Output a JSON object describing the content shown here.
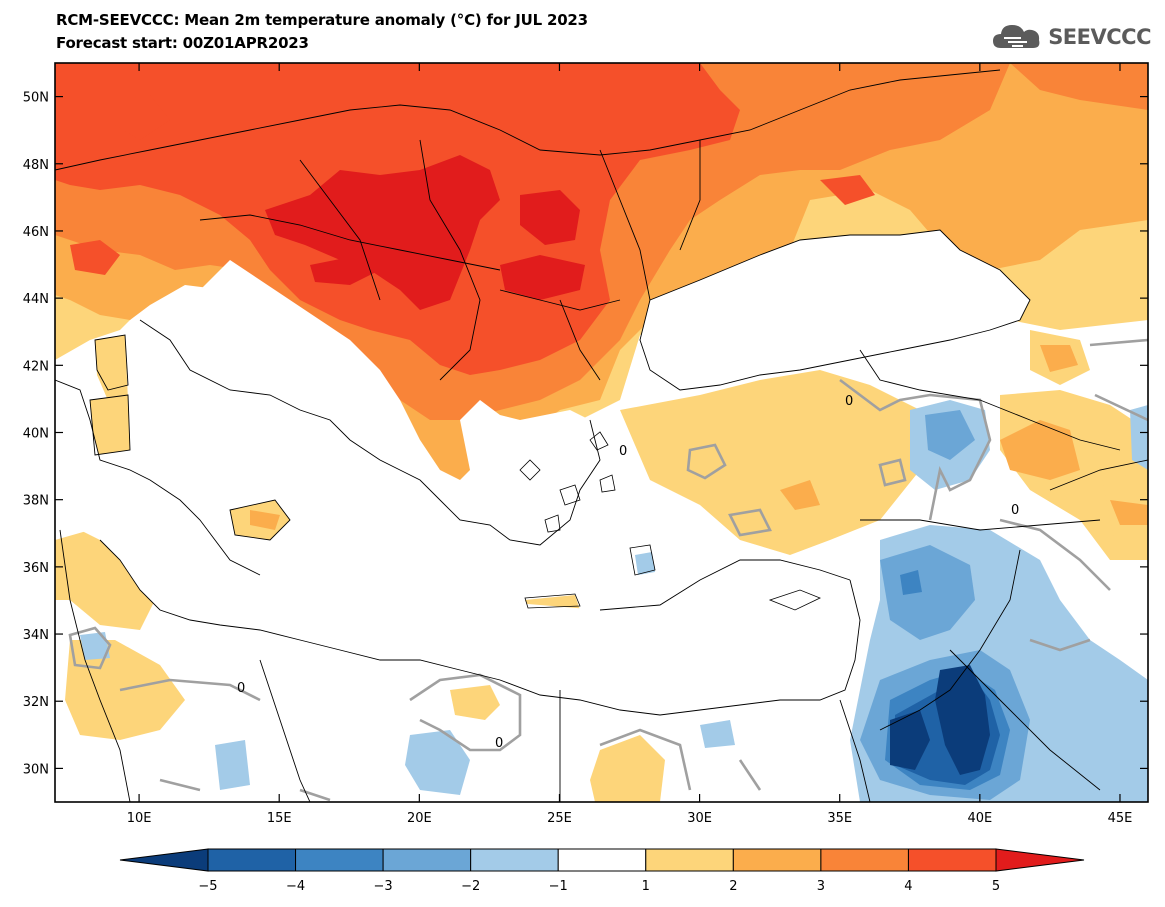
{
  "header": {
    "title_line1": "RCM-SEEVCCC: Mean 2m temperature anomaly (°C) for JUL 2023",
    "title_line2": "Forecast start: 00Z01APR2023"
  },
  "logo": {
    "text": "SEEVCCC",
    "icon": "cloud-icon",
    "color": "#5b5b5b"
  },
  "map": {
    "lon_range": [
      7,
      46
    ],
    "lat_range": [
      29,
      51
    ],
    "lon_ticks": [
      10,
      15,
      20,
      25,
      30,
      35,
      40,
      45
    ],
    "lon_labels": [
      "10E",
      "15E",
      "20E",
      "25E",
      "30E",
      "35E",
      "40E",
      "45E"
    ],
    "lat_ticks": [
      30,
      32,
      34,
      36,
      38,
      40,
      42,
      44,
      46,
      48,
      50
    ],
    "lat_labels": [
      "30N",
      "32N",
      "34N",
      "36N",
      "38N",
      "40N",
      "42N",
      "44N",
      "46N",
      "48N",
      "50N"
    ],
    "contour_label": "0",
    "sea_color": "#ffffff",
    "land_border_color": "#000000"
  },
  "legend": {
    "bounds": [
      -5,
      -4,
      -3,
      -2,
      -1,
      1,
      2,
      3,
      4,
      5
    ],
    "bound_labels": [
      "−5",
      "−4",
      "−3",
      "−2",
      "−1",
      "1",
      "2",
      "3",
      "4",
      "5"
    ],
    "colors": [
      "#0b3c7a",
      "#1f62a6",
      "#3d84c2",
      "#6ba6d6",
      "#a3cbe8",
      "#ffffff",
      "#fdd57a",
      "#fbad4c",
      "#f98438",
      "#f5502a",
      "#e11c1c"
    ]
  }
}
